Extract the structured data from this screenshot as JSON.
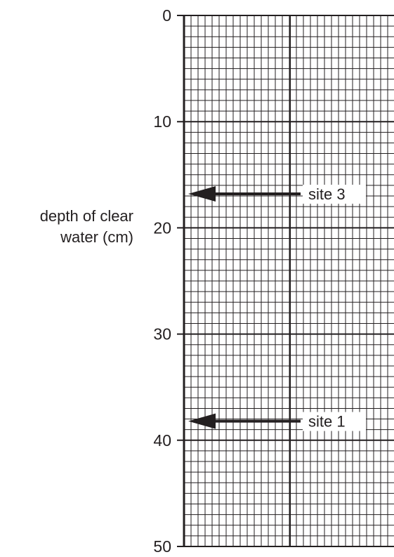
{
  "chart_data": {
    "type": "scatter",
    "title": "",
    "ylabel_lines": [
      "depth of clear",
      "water (cm)"
    ],
    "ylim": [
      0,
      50
    ],
    "y_inverted": true,
    "y_major_ticks": [
      0,
      10,
      20,
      30,
      40,
      50
    ],
    "y_minor_step": 1,
    "grid": true,
    "markers": [
      {
        "label": "site 3",
        "y": 16.8
      },
      {
        "label": "site 1",
        "y": 38.2
      }
    ]
  },
  "colors": {
    "ink": "#231f20",
    "background": "#ffffff"
  }
}
